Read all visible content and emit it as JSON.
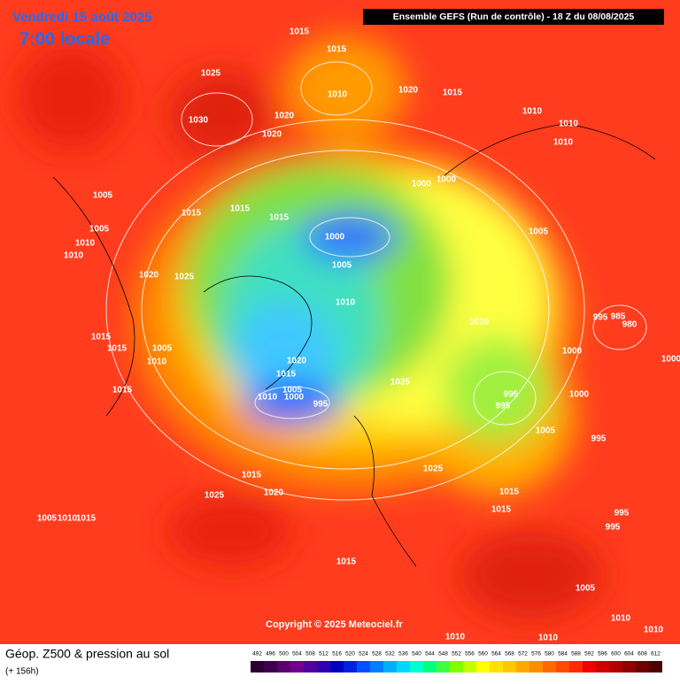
{
  "header": {
    "date": "Vendredi 15 août 2025",
    "local_time": "7:00 locale",
    "model": "Ensemble GEFS  (Run de contrôle)  -  18 Z du 08/08/2025"
  },
  "copyright": "Copyright © 2025 Meteociel.fr",
  "caption": {
    "title": "Géop. Z500 & pression au sol",
    "lead": "(+ 156h)"
  },
  "isobar_labels": [
    "1015",
    "1015",
    "1025",
    "1010",
    "1020",
    "1015",
    "1030",
    "1020",
    "1020",
    "1010",
    "1010",
    "1010",
    "1005",
    "1015",
    "1015",
    "1015",
    "1000",
    "1000",
    "1005",
    "1010",
    "1010",
    "1000",
    "1005",
    "1005",
    "1020",
    "1025",
    "1010",
    "995",
    "985",
    "980",
    "1010",
    "1015",
    "1015",
    "1005",
    "1010",
    "1000",
    "1000",
    "1020",
    "1015",
    "1025",
    "1015",
    "1005",
    "1010",
    "1000",
    "995",
    "995",
    "995",
    "1000",
    "1005",
    "995",
    "1015",
    "1025",
    "1020",
    "1015",
    "1025",
    "1015",
    "1005",
    "1010",
    "1015",
    "995",
    "995",
    "1015",
    "1005",
    "1010",
    "1010",
    "1010",
    "1010"
  ],
  "legend": {
    "values": [
      492,
      496,
      500,
      504,
      508,
      512,
      516,
      520,
      524,
      528,
      532,
      536,
      540,
      544,
      548,
      552,
      556,
      560,
      564,
      568,
      572,
      576,
      580,
      584,
      588,
      592,
      596,
      600,
      604,
      608,
      612
    ],
    "colors": [
      "#2a0030",
      "#400050",
      "#5a0070",
      "#700090",
      "#5000a0",
      "#3000b0",
      "#0000c0",
      "#0020e0",
      "#0050ff",
      "#0080ff",
      "#00b0ff",
      "#00d8ff",
      "#00ffd0",
      "#00ff80",
      "#40ff40",
      "#80ff00",
      "#c0ff00",
      "#ffff00",
      "#ffe000",
      "#ffc800",
      "#ffa800",
      "#ff8c00",
      "#ff6a00",
      "#ff4a00",
      "#ff2a00",
      "#f00000",
      "#d00000",
      "#b00000",
      "#900000",
      "#700000",
      "#500000"
    ]
  }
}
